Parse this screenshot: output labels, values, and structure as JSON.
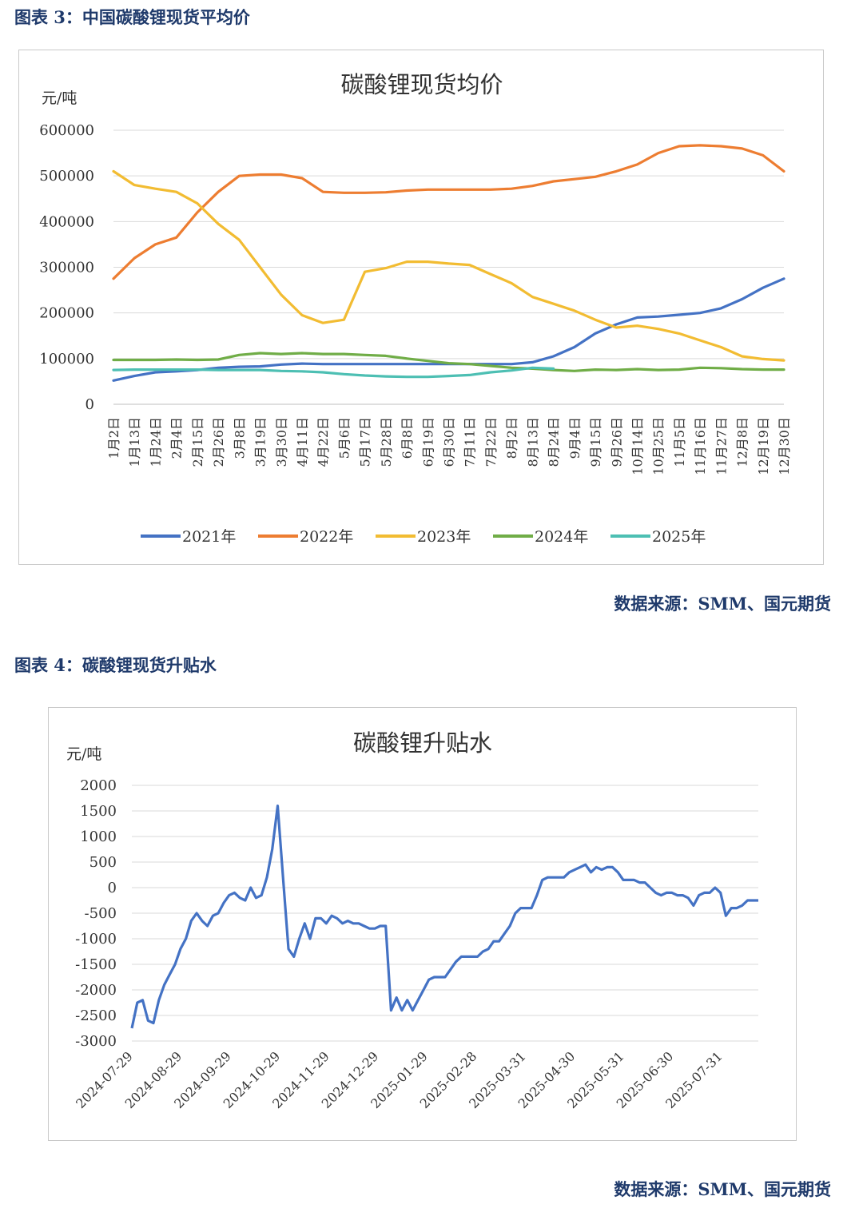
{
  "figure3": {
    "caption": "图表 3：中国碳酸锂现货平均价",
    "source": "数据来源：SMM、国元期货"
  },
  "figure4": {
    "caption": "图表 4：碳酸锂现货升贴水",
    "source": "数据来源：SMM、国元期货"
  },
  "chart_data": [
    {
      "type": "line",
      "title": "碳酸锂现货均价",
      "ylabel": "元/吨",
      "xlabel": "",
      "ylim": [
        0,
        600000
      ],
      "yticks": [
        0,
        100000,
        200000,
        300000,
        400000,
        500000,
        600000
      ],
      "ytick_labels": [
        "0",
        "100000",
        "200000",
        "300000",
        "400000",
        "500000",
        "600000"
      ],
      "grid": "horizontal",
      "legend": "bottom",
      "categories": [
        "1月2日",
        "1月13日",
        "1月24日",
        "2月4日",
        "2月15日",
        "2月26日",
        "3月8日",
        "3月19日",
        "3月30日",
        "4月11日",
        "4月22日",
        "5月6日",
        "5月17日",
        "5月28日",
        "6月8日",
        "6月19日",
        "6月30日",
        "7月11日",
        "7月22日",
        "8月2日",
        "8月13日",
        "8月24日",
        "9月4日",
        "9月15日",
        "9月26日",
        "10月14日",
        "10月25日",
        "11月5日",
        "11月16日",
        "11月27日",
        "12月8日",
        "12月19日",
        "12月30日"
      ],
      "series": [
        {
          "name": "2021年",
          "color": "#4472c4",
          "values": [
            52000,
            62000,
            70000,
            72000,
            75000,
            80000,
            82000,
            83000,
            87000,
            89000,
            88000,
            88000,
            88000,
            88000,
            88000,
            88000,
            88000,
            88000,
            88000,
            88000,
            92000,
            105000,
            125000,
            155000,
            175000,
            190000,
            192000,
            196000,
            200000,
            210000,
            230000,
            255000,
            275000
          ]
        },
        {
          "name": "2022年",
          "color": "#ed7d31",
          "values": [
            275000,
            320000,
            350000,
            365000,
            420000,
            465000,
            500000,
            503000,
            503000,
            495000,
            465000,
            463000,
            463000,
            464000,
            468000,
            470000,
            470000,
            470000,
            470000,
            472000,
            478000,
            488000,
            493000,
            498000,
            510000,
            525000,
            550000,
            565000,
            567000,
            565000,
            560000,
            545000,
            510000
          ]
        },
        {
          "name": "2023年",
          "color": "#f2bc32",
          "values": [
            510000,
            480000,
            472000,
            465000,
            440000,
            395000,
            360000,
            300000,
            240000,
            195000,
            178000,
            185000,
            290000,
            298000,
            312000,
            312000,
            308000,
            305000,
            285000,
            265000,
            235000,
            220000,
            205000,
            185000,
            168000,
            172000,
            165000,
            155000,
            140000,
            125000,
            105000,
            99000,
            96000
          ]
        },
        {
          "name": "2024年",
          "color": "#70ad47",
          "values": [
            97000,
            97000,
            97000,
            98000,
            97000,
            98000,
            108000,
            112000,
            110000,
            112000,
            110000,
            110000,
            108000,
            106000,
            100000,
            95000,
            90000,
            88000,
            84000,
            80000,
            78000,
            75000,
            73000,
            76000,
            75000,
            77000,
            75000,
            76000,
            80000,
            79000,
            77000,
            76000,
            76000
          ]
        },
        {
          "name": "2025年",
          "color": "#4dbfb3",
          "values": [
            75000,
            76000,
            76000,
            76000,
            76000,
            75000,
            75000,
            75000,
            73000,
            72000,
            70000,
            66000,
            63000,
            61000,
            60000,
            60000,
            62000,
            64000,
            70000,
            74000,
            80000,
            78000,
            null,
            null,
            null,
            null,
            null,
            null,
            null,
            null,
            null,
            null,
            null
          ]
        }
      ]
    },
    {
      "type": "line",
      "title": "碳酸锂升贴水",
      "ylabel": "元/吨",
      "xlabel": "",
      "ylim": [
        -3000,
        2000
      ],
      "yticks": [
        2000,
        1500,
        1000,
        500,
        0,
        -500,
        -1000,
        -1500,
        -2000,
        -2500,
        -3000
      ],
      "ytick_labels": [
        "2000",
        "1500",
        "1000",
        "500",
        "0",
        "-500",
        "-1000",
        "-1500",
        "-2000",
        "-2500",
        "-3000"
      ],
      "grid": "horizontal",
      "legend": "none",
      "xtick_labels": [
        "2024-07-29",
        "2024-08-29",
        "2024-09-29",
        "2024-10-29",
        "2024-11-29",
        "2024-12-29",
        "2025-01-29",
        "2025-02-28",
        "2025-03-31",
        "2025-04-30",
        "2025-05-31",
        "2025-06-30",
        "2025-07-31"
      ],
      "series": [
        {
          "name": "",
          "color": "#4472c4",
          "values": [
            -2750,
            -2250,
            -2200,
            -2600,
            -2650,
            -2200,
            -1900,
            -1700,
            -1500,
            -1200,
            -1000,
            -650,
            -500,
            -650,
            -750,
            -550,
            -500,
            -300,
            -150,
            -100,
            -200,
            -250,
            0,
            -200,
            -150,
            200,
            750,
            1600,
            200,
            -1200,
            -1350,
            -1000,
            -700,
            -1000,
            -600,
            -600,
            -700,
            -550,
            -600,
            -700,
            -650,
            -700,
            -700,
            -750,
            -800,
            -800,
            -750,
            -750,
            -2400,
            -2150,
            -2400,
            -2200,
            -2400,
            -2200,
            -2000,
            -1800,
            -1750,
            -1750,
            -1750,
            -1600,
            -1450,
            -1350,
            -1350,
            -1350,
            -1350,
            -1250,
            -1200,
            -1050,
            -1050,
            -900,
            -750,
            -500,
            -400,
            -400,
            -400,
            -150,
            150,
            200,
            200,
            200,
            200,
            300,
            350,
            400,
            450,
            300,
            400,
            350,
            400,
            400,
            300,
            150,
            150,
            150,
            100,
            100,
            0,
            -100,
            -150,
            -100,
            -100,
            -150,
            -150,
            -200,
            -350,
            -150,
            -100,
            -100,
            0,
            -100,
            -550,
            -400,
            -400,
            -350,
            -250,
            -250,
            -250
          ]
        }
      ]
    }
  ]
}
